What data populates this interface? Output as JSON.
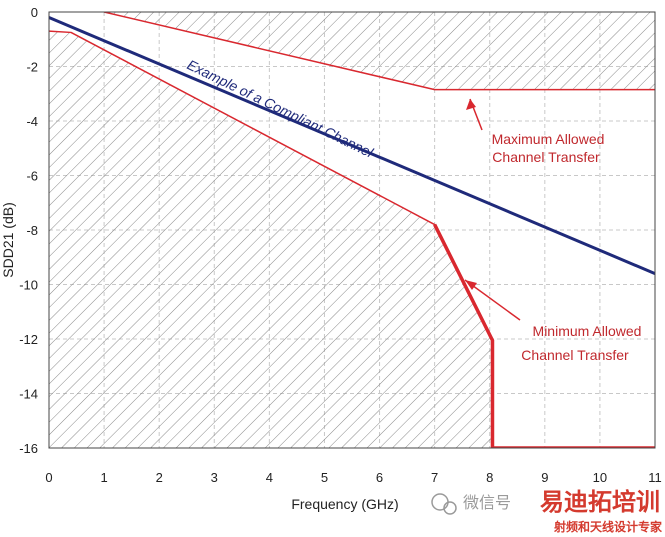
{
  "chart_data": {
    "type": "line",
    "xlabel": "Frequency (GHz)",
    "ylabel": "SDD21 (dB)",
    "xlim": [
      0,
      11
    ],
    "ylim": [
      -16,
      0
    ],
    "x_ticks": [
      "0",
      "1",
      "2",
      "3",
      "4",
      "5",
      "6",
      "7",
      "8",
      "9",
      "10",
      "11"
    ],
    "y_ticks": [
      "0",
      "-2",
      "-4",
      "-6",
      "-8",
      "-10",
      "-12",
      "-14",
      "-16"
    ],
    "grid": true,
    "series": [
      {
        "name": "Example of a Compliant Channel",
        "color": "#1f2a7a",
        "points": [
          [
            0,
            -0.2
          ],
          [
            11,
            -9.6
          ]
        ]
      },
      {
        "name": "Maximum Allowed Channel Transfer",
        "color": "#d9282f",
        "points": [
          [
            1,
            0
          ],
          [
            7,
            -2.85
          ],
          [
            11,
            -2.85
          ]
        ]
      },
      {
        "name": "Minimum Allowed Channel Transfer",
        "color": "#d9282f",
        "points": [
          [
            0,
            -0.7
          ],
          [
            0.4,
            -0.75
          ],
          [
            7,
            -7.8
          ],
          [
            8.05,
            -12.05
          ],
          [
            8.05,
            -16
          ],
          [
            11,
            -16
          ]
        ]
      }
    ],
    "annotations": {
      "compliant": "Example of a Compliant Channel",
      "max_line1": "Maximum Allowed",
      "max_line2": "Channel Transfer",
      "min_line1": "Minimum Allowed",
      "min_line2": "Channel Transfer"
    }
  },
  "watermark": {
    "gray_text": "微信号",
    "brand": "易迪拓培训",
    "sub": "射频和天线设计专家",
    "icon": "wechat-icon"
  }
}
